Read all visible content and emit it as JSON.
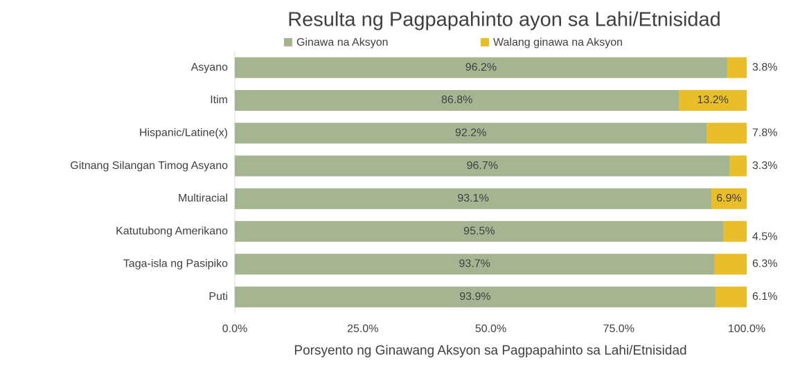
{
  "chart_data": {
    "type": "stacked_bar_horizontal",
    "title": "Resulta ng Pagpapahinto ayon sa Lahi/Etnisidad",
    "x_label": "Porsyento ng Ginawang Aksyon sa Pagpapahinto sa Lahi/Etnisidad",
    "categories": [
      "Asyano",
      "Itim",
      "Hispanic/Latine(x)",
      "Gitnang Silangan Timog Asyano",
      "Multiracial",
      "Katutubong Amerikano",
      "Taga-isla ng Pasipiko",
      "Puti"
    ],
    "series": [
      {
        "name": "Ginawa na Aksyon",
        "color": "#a5b592",
        "values": [
          96.2,
          86.8,
          92.2,
          96.7,
          93.1,
          95.5,
          93.7,
          93.9
        ],
        "value_labels": [
          "96.2%",
          "86.8%",
          "92.2%",
          "96.7%",
          "93.1%",
          "95.5%",
          "93.7%",
          "93.9%"
        ]
      },
      {
        "name": "Walang ginawa na Aksyon",
        "color": "#e8be2a",
        "values": [
          3.8,
          13.2,
          7.8,
          3.3,
          6.9,
          4.5,
          6.3,
          6.1
        ],
        "value_labels": [
          "3.8%",
          "13.2%",
          "7.8%",
          "3.3%",
          "6.9%",
          "4.5%",
          "6.3%",
          "6.1%"
        ]
      }
    ],
    "xlim": [
      0,
      100
    ],
    "xticks": [
      {
        "value": 0,
        "label": "0.0%"
      },
      {
        "value": 25,
        "label": "25.0%"
      },
      {
        "value": 50,
        "label": "50.0%"
      },
      {
        "value": 75,
        "label": "75.0%"
      },
      {
        "value": 100,
        "label": "100.0%"
      }
    ],
    "legend": "top"
  }
}
